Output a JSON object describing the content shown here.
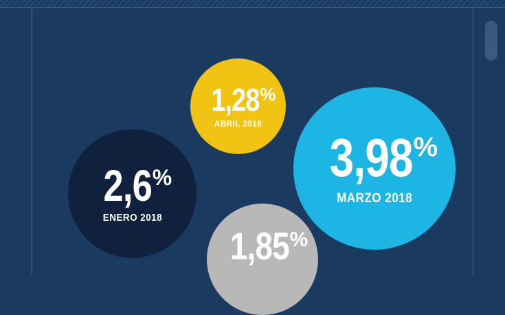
{
  "colors": {
    "background": "#1b3a60",
    "abril": "#f1c312",
    "marzo": "#1db5e3",
    "enero": "#0f213c",
    "gray": "#b9b8b9"
  },
  "bubbles": {
    "abril": {
      "value": "1,28",
      "unit": "%",
      "label": "ABRIL 2018"
    },
    "marzo": {
      "value": "3,98",
      "unit": "%",
      "label": "MARZO 2018"
    },
    "enero": {
      "value": "2,6",
      "unit": "%",
      "label": "ENERO 2018"
    },
    "gray": {
      "value": "1,85",
      "unit": "%"
    }
  }
}
